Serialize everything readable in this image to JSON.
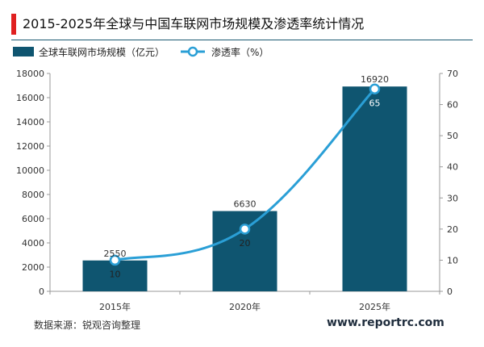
{
  "header": {
    "title": "2015-2025年全球与中国车联网市场规模及渗透率统计情况"
  },
  "footer": {
    "source": "数据来源：锐观咨询整理",
    "website": "www.reportrc.com"
  },
  "colors": {
    "accent": "#e02020",
    "bar": "#0f5570",
    "line": "#2a9fd6",
    "text": "#333333"
  },
  "chart_data": {
    "type": "bar",
    "title": "2015-2025年全球与中国车联网市场规模及渗透率统计情况",
    "categories": [
      "2015年",
      "2020年",
      "2025年"
    ],
    "series": [
      {
        "name": "全球车联网市场规模（亿元）",
        "type": "bar",
        "axis": "left",
        "values": [
          2550,
          6630,
          16920
        ],
        "labels": [
          "2550",
          "6630",
          "16920"
        ]
      },
      {
        "name": "渗透率（%）",
        "type": "line",
        "axis": "right",
        "smooth": true,
        "values": [
          10,
          20,
          65
        ],
        "labels": [
          "10",
          "20",
          "65"
        ]
      }
    ],
    "y_left": {
      "min": 0,
      "max": 18000,
      "step": 2000,
      "ticks": [
        "0",
        "2000",
        "4000",
        "6000",
        "8000",
        "10000",
        "12000",
        "14000",
        "16000",
        "18000"
      ]
    },
    "y_right": {
      "min": 0,
      "max": 70,
      "step": 10,
      "ticks": [
        "0",
        "10",
        "20",
        "30",
        "40",
        "50",
        "60",
        "70"
      ]
    },
    "grid": false,
    "legend": "top-left"
  }
}
